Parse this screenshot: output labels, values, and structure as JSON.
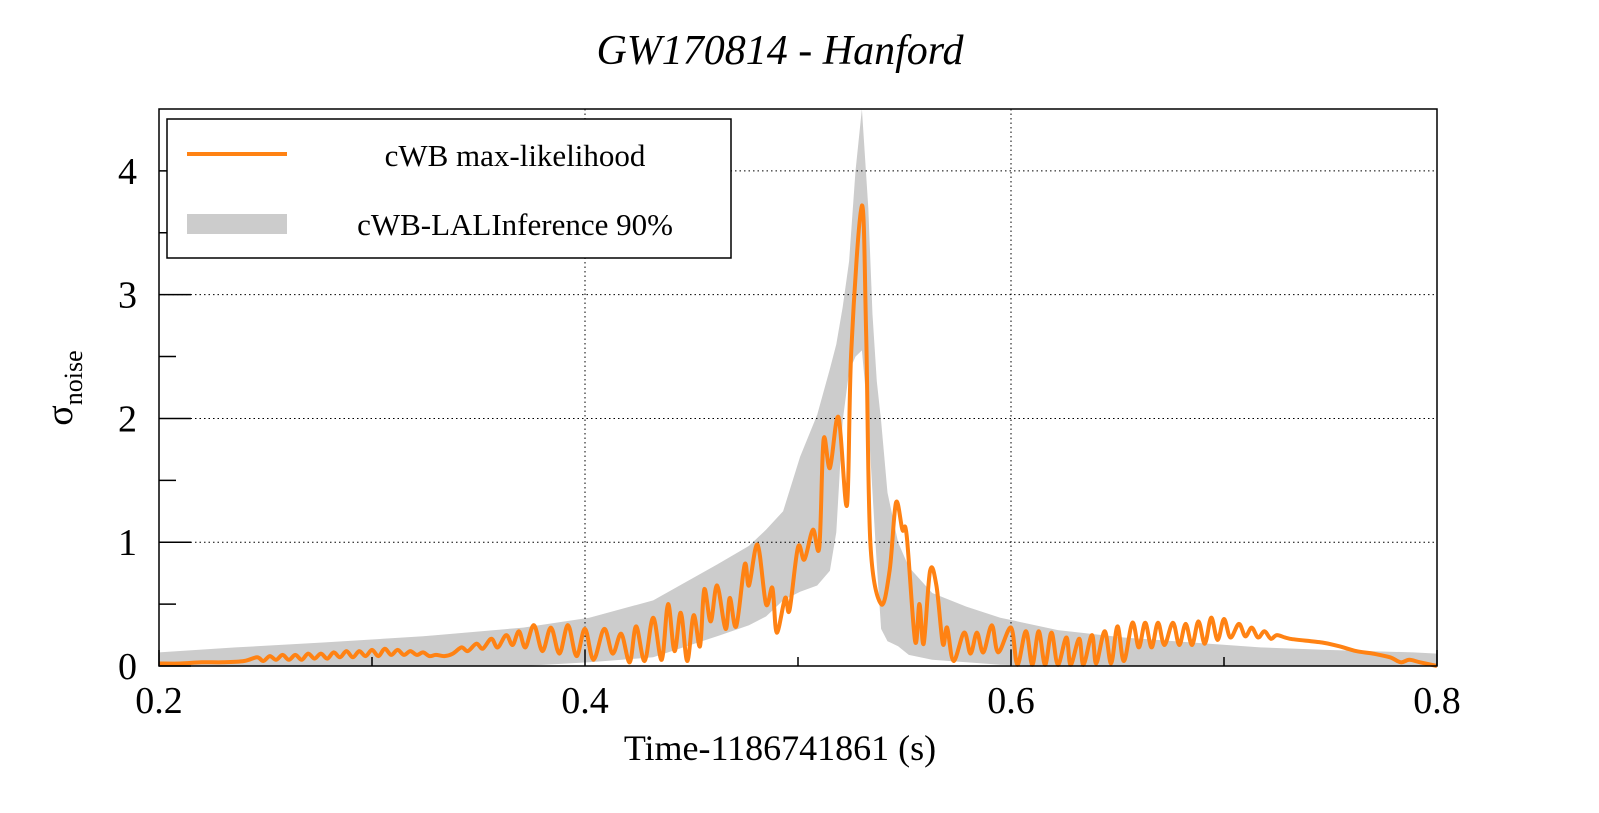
{
  "chart_data": {
    "type": "line",
    "title": "GW170814 - Hanford",
    "xlabel": "Time-1186741861 (s)",
    "ylabel": "σ",
    "ylabel_sub": "noise",
    "xlim": [
      0.2,
      0.8
    ],
    "ylim": [
      0,
      4.5
    ],
    "xticks": [
      0.2,
      0.4,
      0.6,
      0.8
    ],
    "xtick_labels": [
      "0.2",
      "0.4",
      "0.6",
      "0.8"
    ],
    "yticks": [
      0,
      1,
      2,
      3,
      4
    ],
    "ytick_labels": [
      "0",
      "1",
      "2",
      "3",
      "4"
    ],
    "grid": true,
    "legend_placement": "top-left",
    "colors": {
      "line": "#ff8213",
      "band": "#cccccc"
    },
    "series": [
      {
        "name": "cWB max-likelihood",
        "kind": "line",
        "points": [
          [
            0.2,
            0.02
          ],
          [
            0.21,
            0.02
          ],
          [
            0.22,
            0.03
          ],
          [
            0.23,
            0.03
          ],
          [
            0.24,
            0.04
          ],
          [
            0.246,
            0.07
          ],
          [
            0.249,
            0.04
          ],
          [
            0.252,
            0.08
          ],
          [
            0.255,
            0.05
          ],
          [
            0.258,
            0.09
          ],
          [
            0.261,
            0.05
          ],
          [
            0.264,
            0.09
          ],
          [
            0.267,
            0.05
          ],
          [
            0.27,
            0.1
          ],
          [
            0.273,
            0.06
          ],
          [
            0.276,
            0.1
          ],
          [
            0.279,
            0.06
          ],
          [
            0.282,
            0.11
          ],
          [
            0.285,
            0.07
          ],
          [
            0.288,
            0.12
          ],
          [
            0.291,
            0.07
          ],
          [
            0.294,
            0.12
          ],
          [
            0.297,
            0.08
          ],
          [
            0.3,
            0.13
          ],
          [
            0.303,
            0.08
          ],
          [
            0.306,
            0.14
          ],
          [
            0.309,
            0.09
          ],
          [
            0.312,
            0.13
          ],
          [
            0.315,
            0.09
          ],
          [
            0.318,
            0.12
          ],
          [
            0.321,
            0.09
          ],
          [
            0.324,
            0.11
          ],
          [
            0.327,
            0.08
          ],
          [
            0.33,
            0.09
          ],
          [
            0.334,
            0.08
          ],
          [
            0.338,
            0.1
          ],
          [
            0.342,
            0.15
          ],
          [
            0.345,
            0.12
          ],
          [
            0.349,
            0.18
          ],
          [
            0.352,
            0.14
          ],
          [
            0.356,
            0.22
          ],
          [
            0.359,
            0.15
          ],
          [
            0.363,
            0.25
          ],
          [
            0.366,
            0.17
          ],
          [
            0.369,
            0.28
          ],
          [
            0.372,
            0.15
          ],
          [
            0.376,
            0.33
          ],
          [
            0.38,
            0.12
          ],
          [
            0.384,
            0.31
          ],
          [
            0.388,
            0.1
          ],
          [
            0.392,
            0.33
          ],
          [
            0.396,
            0.08
          ],
          [
            0.4,
            0.3
          ],
          [
            0.404,
            0.05
          ],
          [
            0.409,
            0.3
          ],
          [
            0.413,
            0.1
          ],
          [
            0.417,
            0.26
          ],
          [
            0.421,
            0.03
          ],
          [
            0.424,
            0.32
          ],
          [
            0.428,
            0.04
          ],
          [
            0.432,
            0.39
          ],
          [
            0.436,
            0.05
          ],
          [
            0.439,
            0.5
          ],
          [
            0.442,
            0.12
          ],
          [
            0.445,
            0.43
          ],
          [
            0.448,
            0.04
          ],
          [
            0.451,
            0.41
          ],
          [
            0.454,
            0.16
          ],
          [
            0.456,
            0.62
          ],
          [
            0.459,
            0.36
          ],
          [
            0.462,
            0.65
          ],
          [
            0.466,
            0.3
          ],
          [
            0.468,
            0.55
          ],
          [
            0.471,
            0.32
          ],
          [
            0.475,
            0.82
          ],
          [
            0.477,
            0.65
          ],
          [
            0.481,
            0.98
          ],
          [
            0.485,
            0.5
          ],
          [
            0.488,
            0.63
          ],
          [
            0.49,
            0.27
          ],
          [
            0.494,
            0.55
          ],
          [
            0.496,
            0.45
          ],
          [
            0.5,
            0.96
          ],
          [
            0.503,
            0.86
          ],
          [
            0.507,
            1.1
          ],
          [
            0.51,
            0.96
          ],
          [
            0.512,
            1.83
          ],
          [
            0.515,
            1.6
          ],
          [
            0.519,
            2.01
          ],
          [
            0.523,
            1.3
          ],
          [
            0.525,
            2.55
          ],
          [
            0.53,
            3.72
          ],
          [
            0.532,
            2.67
          ],
          [
            0.534,
            0.99
          ],
          [
            0.539,
            0.5
          ],
          [
            0.543,
            0.77
          ],
          [
            0.546,
            1.32
          ],
          [
            0.549,
            1.1
          ],
          [
            0.551,
            1.06
          ],
          [
            0.555,
            0.2
          ],
          [
            0.557,
            0.5
          ],
          [
            0.559,
            0.18
          ],
          [
            0.562,
            0.77
          ],
          [
            0.565,
            0.65
          ],
          [
            0.568,
            0.18
          ],
          [
            0.57,
            0.31
          ],
          [
            0.573,
            0.04
          ],
          [
            0.578,
            0.27
          ],
          [
            0.581,
            0.1
          ],
          [
            0.584,
            0.27
          ],
          [
            0.587,
            0.11
          ],
          [
            0.591,
            0.33
          ],
          [
            0.594,
            0.11
          ],
          [
            0.6,
            0.31
          ],
          [
            0.603,
            0.01
          ],
          [
            0.607,
            0.28
          ],
          [
            0.61,
            0.01
          ],
          [
            0.613,
            0.28
          ],
          [
            0.616,
            0.01
          ],
          [
            0.619,
            0.27
          ],
          [
            0.622,
            0.01
          ],
          [
            0.626,
            0.23
          ],
          [
            0.628,
            0.01
          ],
          [
            0.632,
            0.22
          ],
          [
            0.634,
            0.01
          ],
          [
            0.638,
            0.25
          ],
          [
            0.64,
            0.02
          ],
          [
            0.644,
            0.28
          ],
          [
            0.647,
            0.02
          ],
          [
            0.65,
            0.32
          ],
          [
            0.653,
            0.04
          ],
          [
            0.657,
            0.35
          ],
          [
            0.66,
            0.15
          ],
          [
            0.663,
            0.35
          ],
          [
            0.666,
            0.15
          ],
          [
            0.669,
            0.35
          ],
          [
            0.672,
            0.17
          ],
          [
            0.676,
            0.35
          ],
          [
            0.679,
            0.17
          ],
          [
            0.682,
            0.34
          ],
          [
            0.685,
            0.17
          ],
          [
            0.688,
            0.36
          ],
          [
            0.691,
            0.18
          ],
          [
            0.694,
            0.39
          ],
          [
            0.697,
            0.21
          ],
          [
            0.7,
            0.38
          ],
          [
            0.703,
            0.23
          ],
          [
            0.707,
            0.34
          ],
          [
            0.71,
            0.24
          ],
          [
            0.713,
            0.31
          ],
          [
            0.716,
            0.23
          ],
          [
            0.719,
            0.28
          ],
          [
            0.722,
            0.22
          ],
          [
            0.725,
            0.25
          ],
          [
            0.731,
            0.22
          ],
          [
            0.746,
            0.19
          ],
          [
            0.754,
            0.16
          ],
          [
            0.762,
            0.12
          ],
          [
            0.77,
            0.1
          ],
          [
            0.778,
            0.07
          ],
          [
            0.783,
            0.03
          ],
          [
            0.787,
            0.05
          ],
          [
            0.792,
            0.03
          ],
          [
            0.8,
            0.0
          ]
        ]
      },
      {
        "name": "cWB-LALInference 90%",
        "kind": "band",
        "points": [
          [
            0.2,
            0,
            0.11
          ],
          [
            0.236,
            0,
            0.15
          ],
          [
            0.277,
            0,
            0.19
          ],
          [
            0.324,
            0,
            0.24
          ],
          [
            0.371,
            0,
            0.31
          ],
          [
            0.402,
            0.03,
            0.39
          ],
          [
            0.432,
            0.07,
            0.53
          ],
          [
            0.462,
            0.24,
            0.82
          ],
          [
            0.477,
            0.33,
            0.97
          ],
          [
            0.485,
            0.4,
            1.1
          ],
          [
            0.493,
            0.53,
            1.25
          ],
          [
            0.501,
            0.6,
            1.69
          ],
          [
            0.509,
            0.65,
            2.03
          ],
          [
            0.515,
            0.77,
            2.4
          ],
          [
            0.518,
            1.08,
            2.6
          ],
          [
            0.521,
            1.98,
            2.9
          ],
          [
            0.524,
            2.38,
            3.27
          ],
          [
            0.527,
            2.5,
            4.0
          ],
          [
            0.53,
            2.55,
            4.5
          ],
          [
            0.533,
            1.98,
            3.7
          ],
          [
            0.535,
            1.4,
            2.84
          ],
          [
            0.537,
            0.82,
            2.3
          ],
          [
            0.539,
            0.3,
            1.98
          ],
          [
            0.542,
            0.2,
            1.4
          ],
          [
            0.547,
            0.16,
            1.0
          ],
          [
            0.552,
            0.09,
            0.8
          ],
          [
            0.563,
            0.05,
            0.59
          ],
          [
            0.579,
            0.03,
            0.48
          ],
          [
            0.595,
            0.01,
            0.39
          ],
          [
            0.622,
            0,
            0.29
          ],
          [
            0.653,
            0,
            0.23
          ],
          [
            0.685,
            0,
            0.19
          ],
          [
            0.717,
            0,
            0.15
          ],
          [
            0.748,
            0,
            0.13
          ],
          [
            0.789,
            0,
            0.11
          ],
          [
            0.8,
            0,
            0.1
          ]
        ]
      }
    ]
  }
}
